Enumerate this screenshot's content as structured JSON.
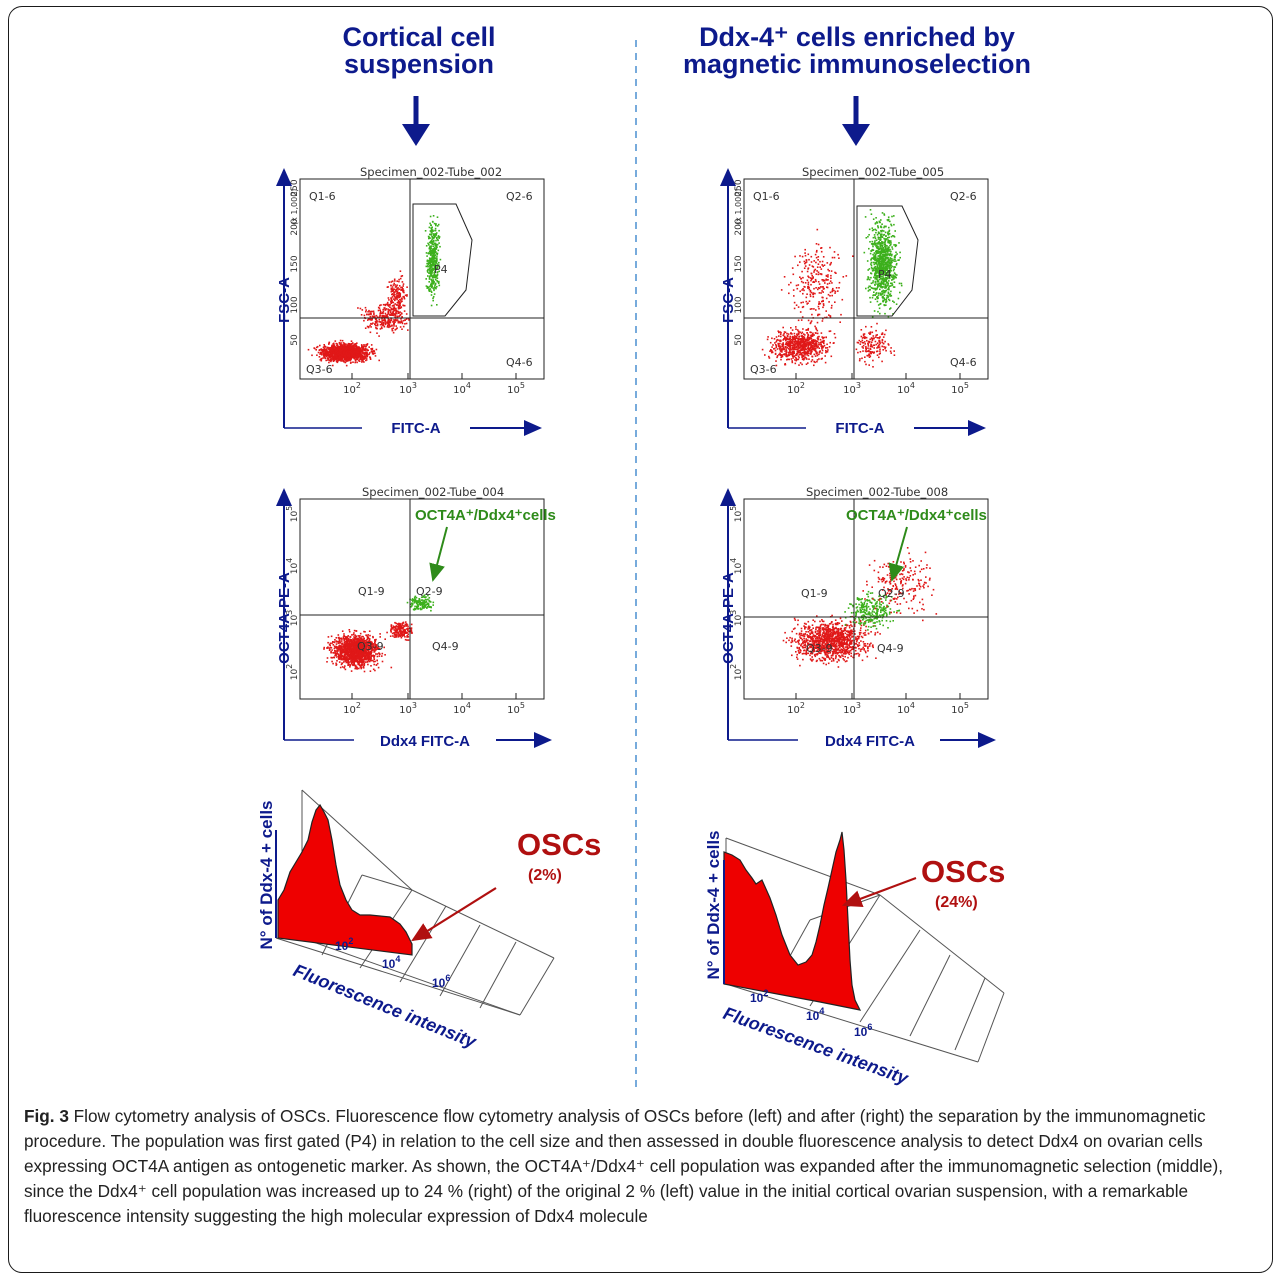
{
  "headers": {
    "left_line1": "Cortical cell",
    "left_line2": "suspension",
    "right_line1": "Ddx-4⁺ cells enriched by",
    "right_line2": "magnetic immunoselection"
  },
  "scatter_top": {
    "left": {
      "specimen": "Specimen_002-Tube_002",
      "xlabel": "FITC-A",
      "ylabel": "FSC-A",
      "gate": "P4",
      "quadrants": [
        "Q1-6",
        "Q2-6",
        "Q3-6",
        "Q4-6"
      ],
      "y_scale": "(x 1,000)",
      "yticks": [
        "50",
        "100",
        "150",
        "200",
        "250"
      ]
    },
    "right": {
      "specimen": "Specimen_002-Tube_005",
      "xlabel": "FITC-A",
      "ylabel": "FSC-A",
      "gate": "P4",
      "quadrants": [
        "Q1-6",
        "Q2-6",
        "Q3-6",
        "Q4-6"
      ],
      "y_scale": "(x 1,000)",
      "yticks": [
        "50",
        "100",
        "150",
        "200",
        "250"
      ]
    }
  },
  "scatter_mid": {
    "left": {
      "specimen": "Specimen_002-Tube_004",
      "xlabel": "Ddx4 FITC-A",
      "ylabel": "OCT4A-PE-A",
      "quadrants": [
        "Q1-9",
        "Q2-9",
        "Q3-9",
        "Q4-9"
      ],
      "annotation": "OCT4A⁺/Ddx4⁺cells"
    },
    "right": {
      "specimen": "Specimen_002-Tube_008",
      "xlabel": "Ddx4 FITC-A",
      "ylabel": "OCT4A-PE-A",
      "quadrants": [
        "Q1-9",
        "Q2-9",
        "Q3-9",
        "Q4-9"
      ],
      "annotation": "OCT4A⁺/Ddx4⁺cells"
    }
  },
  "histograms": {
    "ylabel": "N° of Ddx-4 + cells",
    "xlabel": "Fluorescence intensity",
    "left": {
      "label": "OSCs",
      "percent": "(2%)"
    },
    "right": {
      "label": "OSCs",
      "percent": "(24%)"
    }
  },
  "caption": {
    "fig_label": "Fig. 3",
    "text": "Flow cytometry analysis of OSCs. Fluorescence flow cytometry analysis of OSCs before (left) and after (right) the separation by the immunomagnetic procedure. The population was first gated (P4) in relation to the cell size and then assessed in double fluorescence analysis to detect Ddx4 on ovarian cells expressing OCT4A antigen as ontogenetic marker. As shown, the OCT4A⁺/Ddx4⁺ cell population was expanded after the immunomagnetic selection (middle), since the Ddx4⁺ cell population was increased up to 24 % (right) of the original 2 % (left) value in the initial cortical ovarian suspension, with a remarkable fluorescence intensity suggesting the high molecular expression of Ddx4 molecule"
  },
  "colors": {
    "navy": "#0d1a8c",
    "red": "#cc0000",
    "green": "#2e8b1a",
    "dark_red": "#b01010"
  }
}
